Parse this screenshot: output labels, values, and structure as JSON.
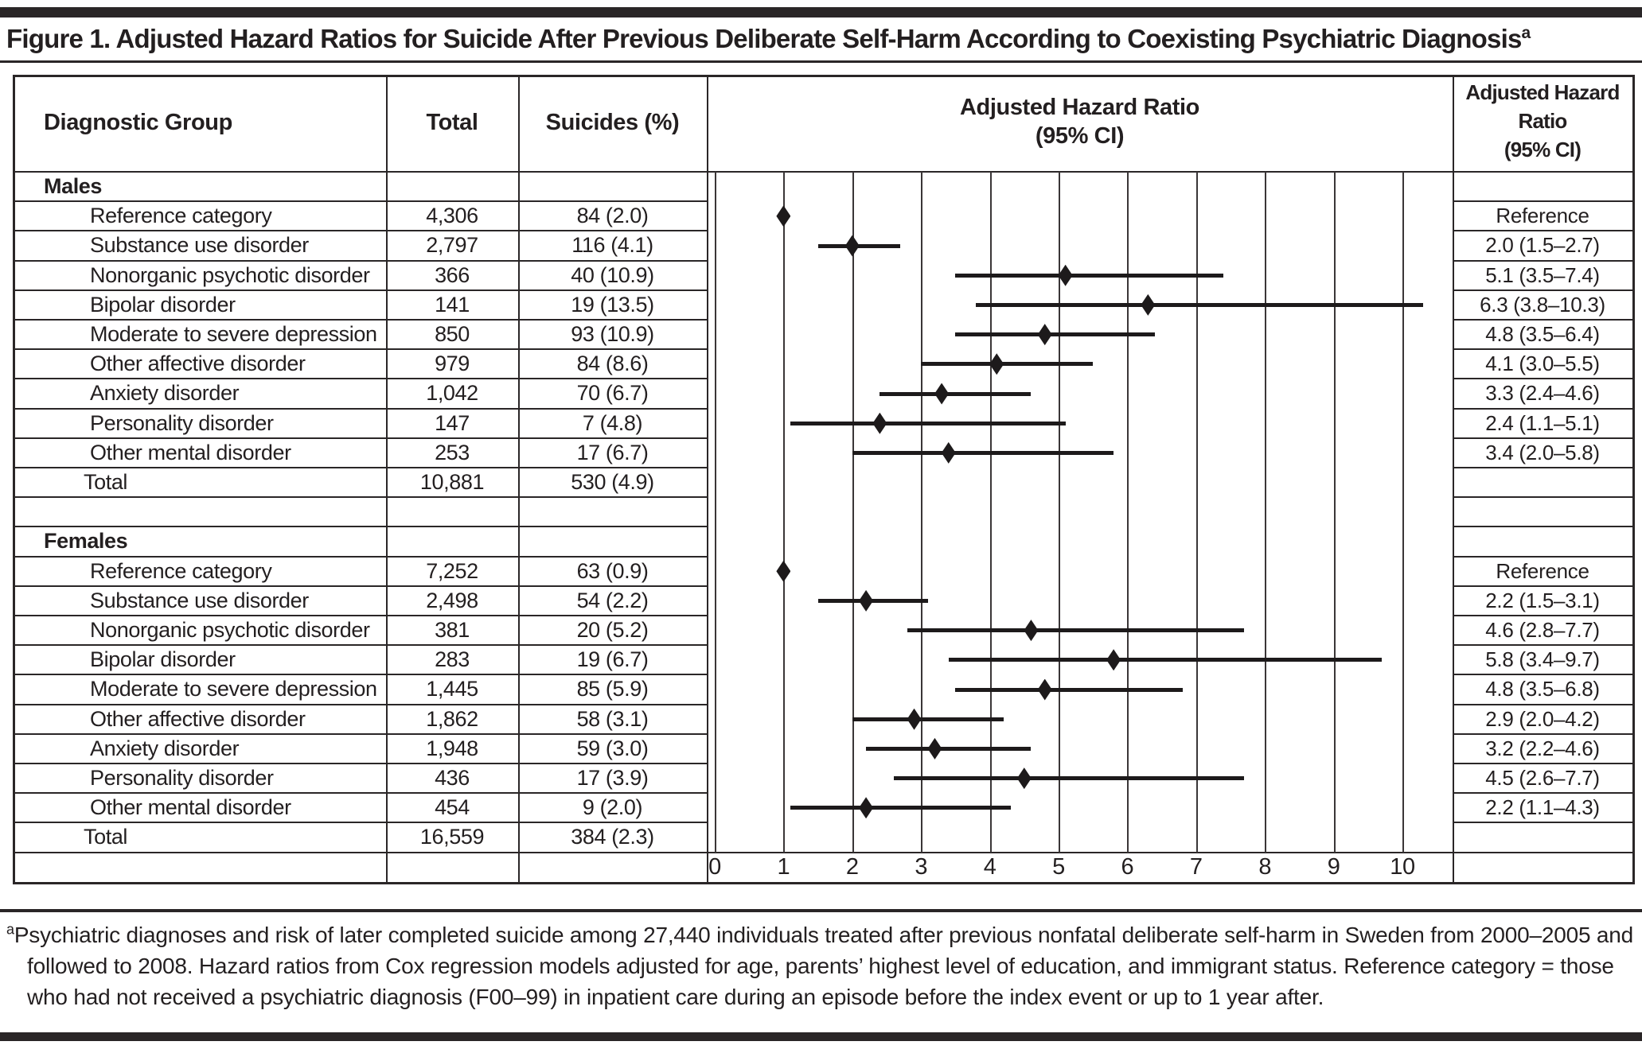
{
  "title": {
    "text": "Figure 1. Adjusted Hazard Ratios for Suicide After Previous Deliberate Self-Harm According to Coexisting Psychiatric Diagnosis",
    "superscript": "a"
  },
  "headers": {
    "col1": "Diagnostic Group",
    "col2": "Total",
    "col3": "Suicides (%)",
    "plot": {
      "line1": "Adjusted Hazard Ratio",
      "line2": "(95% CI)"
    },
    "ahr": {
      "line1": "Adjusted Hazard",
      "line2": "Ratio",
      "line3": "(95% CI)"
    }
  },
  "colors": {
    "ink": "#231f20",
    "background": "#ffffff"
  },
  "chart_data": {
    "type": "forest",
    "title": "Adjusted Hazard Ratio (95% CI)",
    "xlabel": "Adjusted Hazard Ratio",
    "xlim": [
      0,
      10.9
    ],
    "grid": true,
    "axis_ticks": [
      0,
      1,
      2,
      3,
      4,
      5,
      6,
      7,
      8,
      9,
      10
    ],
    "rows": [
      {
        "kind": "section",
        "label": "Males"
      },
      {
        "kind": "data",
        "label": "Reference category",
        "total": "4,306",
        "suicides": "84 (2.0)",
        "hr": 1.0,
        "lo": null,
        "hi": null,
        "ahr": "Reference"
      },
      {
        "kind": "data",
        "label": "Substance use disorder",
        "total": "2,797",
        "suicides": "116 (4.1)",
        "hr": 2.0,
        "lo": 1.5,
        "hi": 2.7,
        "ahr": "2.0 (1.5–2.7)"
      },
      {
        "kind": "data",
        "label": "Nonorganic psychotic disorder",
        "total": "366",
        "suicides": "40 (10.9)",
        "hr": 5.1,
        "lo": 3.5,
        "hi": 7.4,
        "ahr": "5.1 (3.5–7.4)"
      },
      {
        "kind": "data",
        "label": "Bipolar disorder",
        "total": "141",
        "suicides": "19 (13.5)",
        "hr": 6.3,
        "lo": 3.8,
        "hi": 10.3,
        "ahr": "6.3 (3.8–10.3)"
      },
      {
        "kind": "data",
        "label": "Moderate to severe depression",
        "total": "850",
        "suicides": "93 (10.9)",
        "hr": 4.8,
        "lo": 3.5,
        "hi": 6.4,
        "ahr": "4.8 (3.5–6.4)"
      },
      {
        "kind": "data",
        "label": "Other affective disorder",
        "total": "979",
        "suicides": "84 (8.6)",
        "hr": 4.1,
        "lo": 3.0,
        "hi": 5.5,
        "ahr": "4.1 (3.0–5.5)"
      },
      {
        "kind": "data",
        "label": "Anxiety disorder",
        "total": "1,042",
        "suicides": "70 (6.7)",
        "hr": 3.3,
        "lo": 2.4,
        "hi": 4.6,
        "ahr": "3.3 (2.4–4.6)"
      },
      {
        "kind": "data",
        "label": "Personality disorder",
        "total": "147",
        "suicides": "7 (4.8)",
        "hr": 2.4,
        "lo": 1.1,
        "hi": 5.1,
        "ahr": "2.4 (1.1–5.1)"
      },
      {
        "kind": "data",
        "label": "Other mental disorder",
        "total": "253",
        "suicides": "17 (6.7)",
        "hr": 3.4,
        "lo": 2.0,
        "hi": 5.8,
        "ahr": "3.4 (2.0–5.8)"
      },
      {
        "kind": "total",
        "label": "Total",
        "total": "10,881",
        "suicides": "530 (4.9)",
        "hr": null,
        "lo": null,
        "hi": null,
        "ahr": ""
      },
      {
        "kind": "spacer"
      },
      {
        "kind": "section",
        "label": "Females"
      },
      {
        "kind": "data",
        "label": "Reference category",
        "total": "7,252",
        "suicides": "63 (0.9)",
        "hr": 1.0,
        "lo": null,
        "hi": null,
        "ahr": "Reference"
      },
      {
        "kind": "data",
        "label": "Substance use disorder",
        "total": "2,498",
        "suicides": "54 (2.2)",
        "hr": 2.2,
        "lo": 1.5,
        "hi": 3.1,
        "ahr": "2.2 (1.5–3.1)"
      },
      {
        "kind": "data",
        "label": "Nonorganic psychotic disorder",
        "total": "381",
        "suicides": "20 (5.2)",
        "hr": 4.6,
        "lo": 2.8,
        "hi": 7.7,
        "ahr": "4.6 (2.8–7.7)"
      },
      {
        "kind": "data",
        "label": "Bipolar disorder",
        "total": "283",
        "suicides": "19 (6.7)",
        "hr": 5.8,
        "lo": 3.4,
        "hi": 9.7,
        "ahr": "5.8 (3.4–9.7)"
      },
      {
        "kind": "data",
        "label": "Moderate to severe depression",
        "total": "1,445",
        "suicides": "85 (5.9)",
        "hr": 4.8,
        "lo": 3.5,
        "hi": 6.8,
        "ahr": "4.8 (3.5–6.8)"
      },
      {
        "kind": "data",
        "label": "Other affective disorder",
        "total": "1,862",
        "suicides": "58 (3.1)",
        "hr": 2.9,
        "lo": 2.0,
        "hi": 4.2,
        "ahr": "2.9 (2.0–4.2)"
      },
      {
        "kind": "data",
        "label": "Anxiety disorder",
        "total": "1,948",
        "suicides": "59 (3.0)",
        "hr": 3.2,
        "lo": 2.2,
        "hi": 4.6,
        "ahr": "3.2 (2.2–4.6)"
      },
      {
        "kind": "data",
        "label": "Personality disorder",
        "total": "436",
        "suicides": "17 (3.9)",
        "hr": 4.5,
        "lo": 2.6,
        "hi": 7.7,
        "ahr": "4.5 (2.6–7.7)"
      },
      {
        "kind": "data",
        "label": "Other mental disorder",
        "total": "454",
        "suicides": "9 (2.0)",
        "hr": 2.2,
        "lo": 1.1,
        "hi": 4.3,
        "ahr": "2.2 (1.1–4.3)"
      },
      {
        "kind": "total",
        "label": "Total",
        "total": "16,559",
        "suicides": "384 (2.3)",
        "hr": null,
        "lo": null,
        "hi": null,
        "ahr": ""
      },
      {
        "kind": "axis"
      }
    ]
  },
  "footnote": {
    "marker": "a",
    "text": "Psychiatric diagnoses and risk of later completed suicide among 27,440 individuals treated after previous nonfatal deliberate self-harm in Sweden from 2000–2005 and followed to 2008. Hazard ratios from Cox regression models adjusted for age, parents’ highest level of education, and immigrant status. Reference category = those who had not received a psychiatric diagnosis (F00–99) in inpatient care during an episode before the index event or up to 1 year after."
  }
}
